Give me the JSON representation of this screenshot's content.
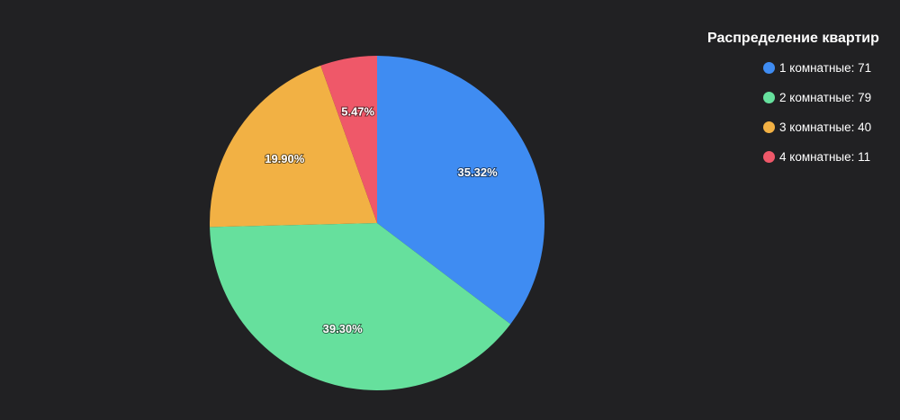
{
  "chart_data": {
    "type": "pie",
    "title": "Распределение квартир",
    "slices": [
      {
        "label": "1 комнатные",
        "value": 71,
        "percent_label": "35.32%",
        "color": "#3f8cf2"
      },
      {
        "label": "2 комнатные",
        "value": 79,
        "percent_label": "39.30%",
        "color": "#66e09d"
      },
      {
        "label": "3 комнатные",
        "value": 40,
        "percent_label": "19.90%",
        "color": "#f2b144"
      },
      {
        "label": "4 комнатные",
        "value": 11,
        "percent_label": "5.47%",
        "color": "#ef5869"
      }
    ],
    "legend_position": "top-right",
    "legend": {
      "items": [
        "1 комнатные: 71",
        "2 комнатные: 79",
        "3 комнатные: 40",
        "4 комнатные: 11"
      ]
    }
  }
}
